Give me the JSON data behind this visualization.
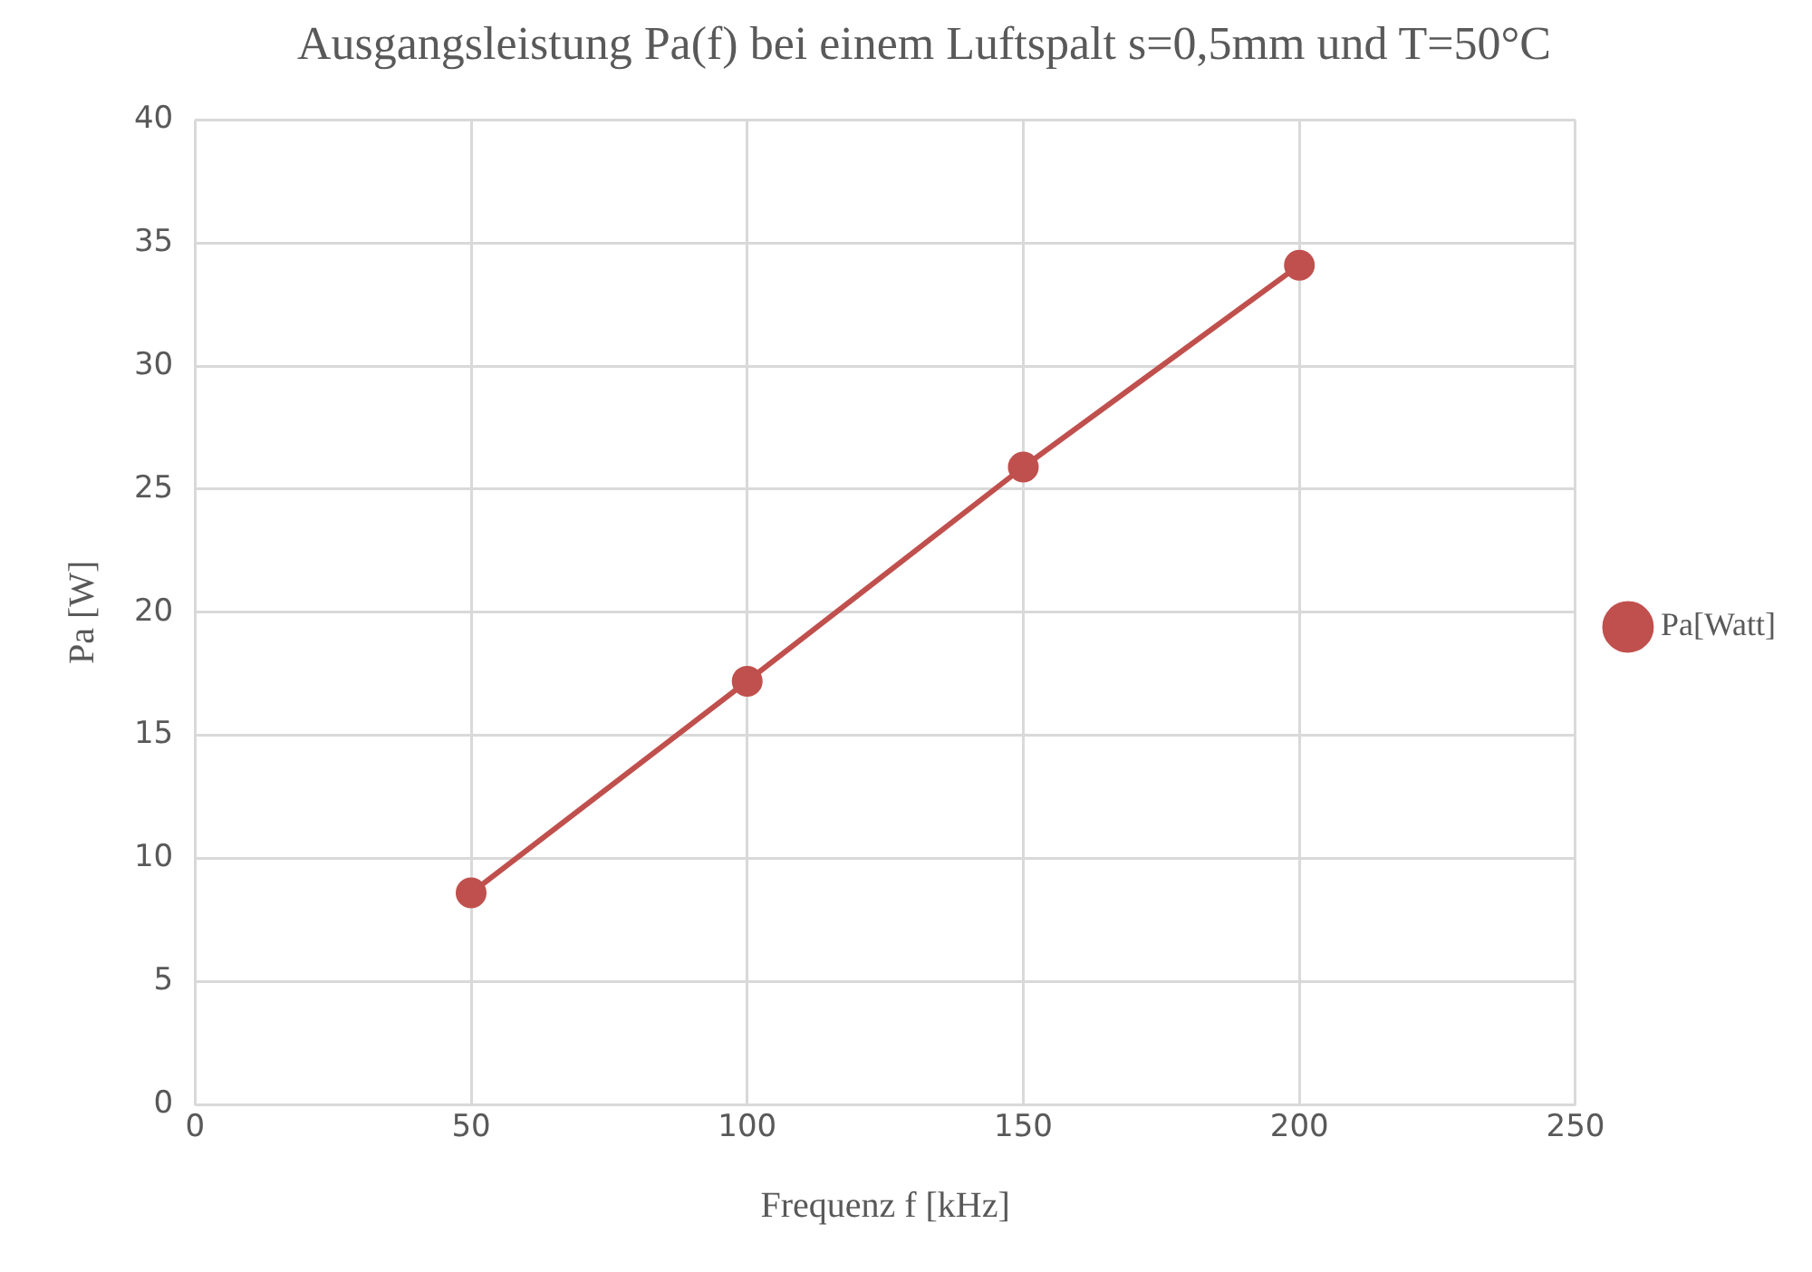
{
  "chart_data": {
    "type": "line",
    "title": "Ausgangsleistung Pa(f) bei einem Luftspalt s=0,5mm und T=50°C",
    "xlabel": "Frequenz f [kHz]",
    "ylabel": "Pa [W]",
    "x": [
      50,
      100,
      150,
      200
    ],
    "series": [
      {
        "name": "Pa[Watt]",
        "color": "#c0504d",
        "values": [
          8.6,
          17.2,
          25.9,
          34.1
        ]
      }
    ],
    "xlim": [
      0,
      250
    ],
    "xticks": [
      0,
      50,
      100,
      150,
      200,
      250
    ],
    "ylim": [
      0,
      40
    ],
    "yticks": [
      0,
      5,
      10,
      15,
      20,
      25,
      30,
      35,
      40
    ],
    "grid": true,
    "legend": "right",
    "marker": "circle",
    "line_style": "solid"
  }
}
